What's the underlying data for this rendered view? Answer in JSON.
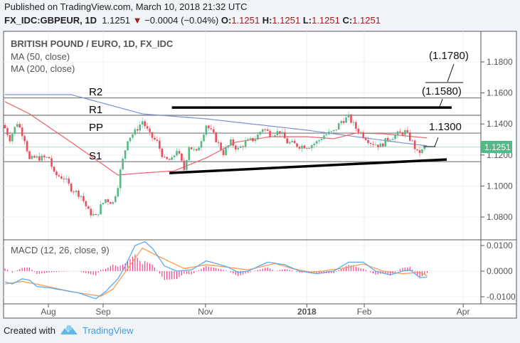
{
  "header": {
    "published": "Published on TradingView.com, March 10, 2018 21:32 UTC",
    "symbol": "FX_IDC:GBPEUR, 1D",
    "last": "1.1251",
    "change": "−0.0004 (−0.04%)",
    "o_label": "O:",
    "o": "1.1251",
    "h_label": "H:",
    "h": "1.1251",
    "l_label": "L:",
    "l": "1.1251",
    "c_label": "C:",
    "c": "1.1251"
  },
  "legend": {
    "title": "BRITISH POUND / EURO, 1D, FX_IDC",
    "ma50": "MA (50, close)",
    "ma200": "MA (200, close)",
    "macd": "MACD (12, 26, close, 9)"
  },
  "annotations": {
    "r2": "R2",
    "r1": "R1",
    "pp": "PP",
    "s1": "S1",
    "t1": "(1.1780)",
    "t2": "(1.1580)",
    "t3": "1.1300"
  },
  "colors": {
    "up": "#53b987",
    "down": "#eb4d5c",
    "ma50": "#f2606a",
    "ma200": "#7b8fd6",
    "macd": "#5aa9f5",
    "signal": "#ff9a4d",
    "hist": "#ff2c86",
    "last_bg": "#53b987"
  },
  "footer": {
    "created": "Created with",
    "brand": "TradingView"
  },
  "chart_data": {
    "type": "candlestick",
    "title": "BRITISH POUND / EURO, 1D, FX_IDC",
    "price_axis": {
      "ticks": [
        "1.0800",
        "1.1000",
        "1.1200",
        "1.1400",
        "1.1600",
        "1.1800"
      ],
      "tick_values": [
        1.08,
        1.1,
        1.12,
        1.14,
        1.16,
        1.18
      ],
      "last_label": "1.1251",
      "last_value": 1.1251
    },
    "macd_axis": {
      "ticks": [
        "0.0100",
        "0.0000",
        "-0.0100"
      ],
      "tick_values": [
        0.01,
        0,
        -0.01
      ]
    },
    "time_axis": [
      {
        "label": "Aug",
        "day": 17.7
      },
      {
        "label": "Sep",
        "day": 40
      },
      {
        "label": "Nov",
        "day": 81.7
      },
      {
        "label": "2018",
        "day": 123
      },
      {
        "label": "Feb",
        "day": 146.4
      },
      {
        "label": "Apr",
        "day": 186.7
      }
    ],
    "close_waypoints": [
      [
        0,
        1.1373
      ],
      [
        2,
        1.1305
      ],
      [
        5,
        1.141
      ],
      [
        8,
        1.1305
      ],
      [
        10,
        1.1167
      ],
      [
        12,
        1.1181
      ],
      [
        18,
        1.1181
      ],
      [
        20,
        1.1075
      ],
      [
        24,
        1.1052
      ],
      [
        27,
        1.0983
      ],
      [
        31,
        1.0938
      ],
      [
        34,
        1.0837
      ],
      [
        37,
        1.08
      ],
      [
        39,
        1.0869
      ],
      [
        41,
        1.0915
      ],
      [
        44,
        1.0892
      ],
      [
        46,
        1.1006
      ],
      [
        47,
        1.1098
      ],
      [
        49,
        1.1236
      ],
      [
        50,
        1.1305
      ],
      [
        53,
        1.135
      ],
      [
        56,
        1.1419
      ],
      [
        59,
        1.1328
      ],
      [
        62,
        1.1282
      ],
      [
        65,
        1.1167
      ],
      [
        68,
        1.1167
      ],
      [
        70,
        1.1236
      ],
      [
        73,
        1.1107
      ],
      [
        75,
        1.1259
      ],
      [
        78,
        1.1213
      ],
      [
        81,
        1.135
      ],
      [
        82,
        1.1396
      ],
      [
        85,
        1.1328
      ],
      [
        89,
        1.1213
      ],
      [
        92,
        1.1282
      ],
      [
        95,
        1.1236
      ],
      [
        98,
        1.1282
      ],
      [
        102,
        1.1305
      ],
      [
        105,
        1.1373
      ],
      [
        108,
        1.1337
      ],
      [
        112,
        1.135
      ],
      [
        115,
        1.1282
      ],
      [
        120,
        1.1259
      ],
      [
        124,
        1.1259
      ],
      [
        127,
        1.1282
      ],
      [
        130,
        1.1328
      ],
      [
        134,
        1.135
      ],
      [
        137,
        1.1419
      ],
      [
        140,
        1.1442
      ],
      [
        143,
        1.1373
      ],
      [
        146,
        1.1328
      ],
      [
        149,
        1.1282
      ],
      [
        153,
        1.1259
      ],
      [
        156,
        1.1305
      ],
      [
        159,
        1.1328
      ],
      [
        163,
        1.135
      ],
      [
        166,
        1.1282
      ],
      [
        168,
        1.1213
      ],
      [
        170,
        1.1227
      ],
      [
        171,
        1.1251
      ]
    ],
    "ma50": [
      [
        0,
        1.1543
      ],
      [
        10,
        1.1465
      ],
      [
        27,
        1.1282
      ],
      [
        46,
        1.1071
      ],
      [
        56,
        1.1084
      ],
      [
        69,
        1.1098
      ],
      [
        82,
        1.1181
      ],
      [
        94,
        1.1282
      ],
      [
        108,
        1.1318
      ],
      [
        123,
        1.1318
      ],
      [
        134,
        1.1305
      ],
      [
        143,
        1.1341
      ],
      [
        154,
        1.1337
      ],
      [
        172,
        1.131
      ]
    ],
    "ma200": [
      [
        0,
        1.1589
      ],
      [
        27,
        1.1589
      ],
      [
        56,
        1.1465
      ],
      [
        82,
        1.1433
      ],
      [
        123,
        1.136
      ],
      [
        160,
        1.1282
      ],
      [
        172,
        1.1259
      ]
    ],
    "pivots": {
      "R2": 1.1568,
      "R1": 1.1456,
      "PP": 1.1341,
      "S1": 1.1157
    },
    "trendlines": [
      {
        "name": "resistance",
        "from": [
          68,
          1.1506
        ],
        "to": [
          182,
          1.1506
        ]
      },
      {
        "name": "support",
        "from": [
          67,
          1.1084
        ],
        "to": [
          180,
          1.1171
        ]
      }
    ],
    "macd_line": [
      [
        0,
        -0.0042
      ],
      [
        3,
        -0.005
      ],
      [
        7,
        -0.003
      ],
      [
        10,
        -0.0035
      ],
      [
        13,
        -0.006
      ],
      [
        18,
        -0.0065
      ],
      [
        24,
        -0.0075
      ],
      [
        30,
        -0.0085
      ],
      [
        37,
        -0.0108
      ],
      [
        41,
        -0.008
      ],
      [
        46,
        -0.003
      ],
      [
        49,
        0.002
      ],
      [
        53,
        0.01
      ],
      [
        57,
        0.0115
      ],
      [
        60,
        0.009
      ],
      [
        65,
        0.002
      ],
      [
        70,
        0
      ],
      [
        76,
        0.0005
      ],
      [
        82,
        0.004
      ],
      [
        86,
        0.003
      ],
      [
        91,
        0.0015
      ],
      [
        95,
        -0.0005
      ],
      [
        99,
        0
      ],
      [
        107,
        0.0035
      ],
      [
        114,
        0.0025
      ],
      [
        120,
        0
      ],
      [
        127,
        -0.001
      ],
      [
        134,
        0
      ],
      [
        140,
        0.0035
      ],
      [
        146,
        0.0035
      ],
      [
        151,
        0
      ],
      [
        157,
        -0.0015
      ],
      [
        162,
        0
      ],
      [
        165,
        0.0005
      ],
      [
        169,
        -0.0025
      ],
      [
        172,
        -0.0023
      ]
    ],
    "signal_line": [
      [
        0,
        -0.005
      ],
      [
        7,
        -0.004
      ],
      [
        15,
        -0.0055
      ],
      [
        27,
        -0.008
      ],
      [
        39,
        -0.0098
      ],
      [
        44,
        -0.007
      ],
      [
        50,
        0.001
      ],
      [
        56,
        0.009
      ],
      [
        62,
        0.006
      ],
      [
        73,
        0.001
      ],
      [
        82,
        0.0025
      ],
      [
        91,
        0.0015
      ],
      [
        99,
        0.0005
      ],
      [
        110,
        0.003
      ],
      [
        117,
        0.001
      ],
      [
        125,
        -0.0005
      ],
      [
        137,
        0.001
      ],
      [
        146,
        0.0028
      ],
      [
        154,
        0
      ],
      [
        162,
        -0.001
      ],
      [
        169,
        -0.0005
      ],
      [
        172,
        -0.0018
      ]
    ]
  }
}
